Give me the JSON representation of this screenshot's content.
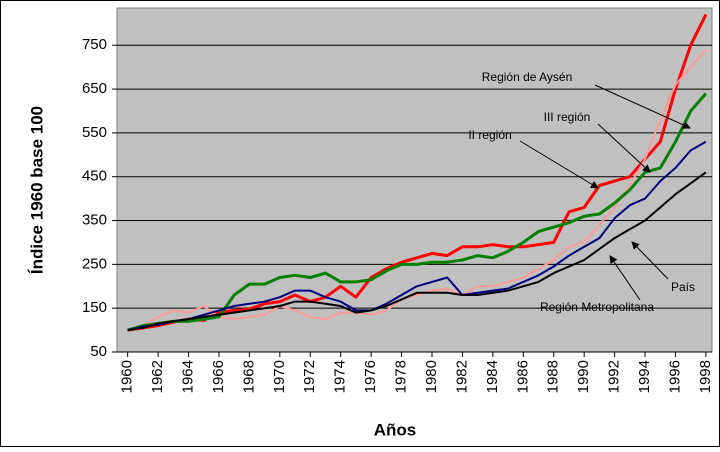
{
  "chart_data": {
    "type": "line",
    "ylabel": "Índice 1960 base 100",
    "xlabel": "Años",
    "x": [
      1960,
      1961,
      1962,
      1963,
      1964,
      1965,
      1966,
      1967,
      1968,
      1969,
      1970,
      1971,
      1972,
      1973,
      1974,
      1975,
      1976,
      1977,
      1978,
      1979,
      1980,
      1981,
      1982,
      1983,
      1984,
      1985,
      1986,
      1987,
      1988,
      1989,
      1990,
      1991,
      1992,
      1993,
      1994,
      1995,
      1996,
      1997,
      1998
    ],
    "xlim": [
      1959.3,
      1998.4
    ],
    "xticks": [
      1960,
      1962,
      1964,
      1966,
      1968,
      1970,
      1972,
      1974,
      1976,
      1978,
      1980,
      1982,
      1984,
      1986,
      1988,
      1990,
      1992,
      1994,
      1996,
      1998
    ],
    "ylim": [
      50,
      835
    ],
    "yticks": [
      50,
      150,
      250,
      350,
      450,
      550,
      650,
      750
    ],
    "grid": true,
    "series": [
      {
        "name": "II región",
        "color": "#ff0000",
        "width": 3,
        "values": [
          100,
          105,
          110,
          118,
          125,
          122,
          140,
          145,
          148,
          160,
          165,
          180,
          165,
          175,
          200,
          175,
          220,
          240,
          255,
          265,
          275,
          270,
          290,
          290,
          295,
          290,
          290,
          295,
          300,
          370,
          380,
          430,
          440,
          450,
          490,
          530,
          650,
          750,
          820
        ]
      },
      {
        "name": "III región",
        "color": "#ff9999",
        "width": 2,
        "values": [
          100,
          110,
          130,
          145,
          140,
          155,
          130,
          125,
          130,
          135,
          155,
          145,
          130,
          125,
          140,
          140,
          135,
          145,
          170,
          180,
          190,
          195,
          180,
          200,
          200,
          210,
          220,
          240,
          260,
          290,
          300,
          340,
          380,
          430,
          490,
          580,
          660,
          700,
          740
        ]
      },
      {
        "name": "Región de Aysén",
        "color": "#008000",
        "width": 3,
        "values": [
          100,
          110,
          115,
          120,
          120,
          125,
          130,
          180,
          205,
          205,
          220,
          225,
          220,
          230,
          210,
          210,
          215,
          235,
          250,
          250,
          255,
          255,
          260,
          270,
          265,
          280,
          300,
          325,
          335,
          345,
          360,
          365,
          390,
          420,
          460,
          470,
          530,
          600,
          640
        ]
      },
      {
        "name": "Región Metropolitana",
        "color": "#000080",
        "width": 2,
        "values": [
          100,
          108,
          112,
          120,
          125,
          135,
          145,
          155,
          160,
          165,
          175,
          190,
          190,
          175,
          165,
          145,
          145,
          160,
          180,
          200,
          210,
          220,
          180,
          185,
          190,
          195,
          210,
          225,
          245,
          270,
          290,
          310,
          355,
          385,
          400,
          440,
          470,
          510,
          530
        ]
      },
      {
        "name": "País",
        "color": "#000000",
        "width": 2,
        "values": [
          100,
          105,
          115,
          120,
          125,
          130,
          135,
          140,
          145,
          150,
          155,
          165,
          165,
          160,
          155,
          140,
          145,
          155,
          170,
          185,
          185,
          185,
          180,
          180,
          185,
          190,
          200,
          210,
          230,
          245,
          260,
          285,
          310,
          330,
          350,
          380,
          410,
          435,
          460
        ]
      }
    ]
  }
}
